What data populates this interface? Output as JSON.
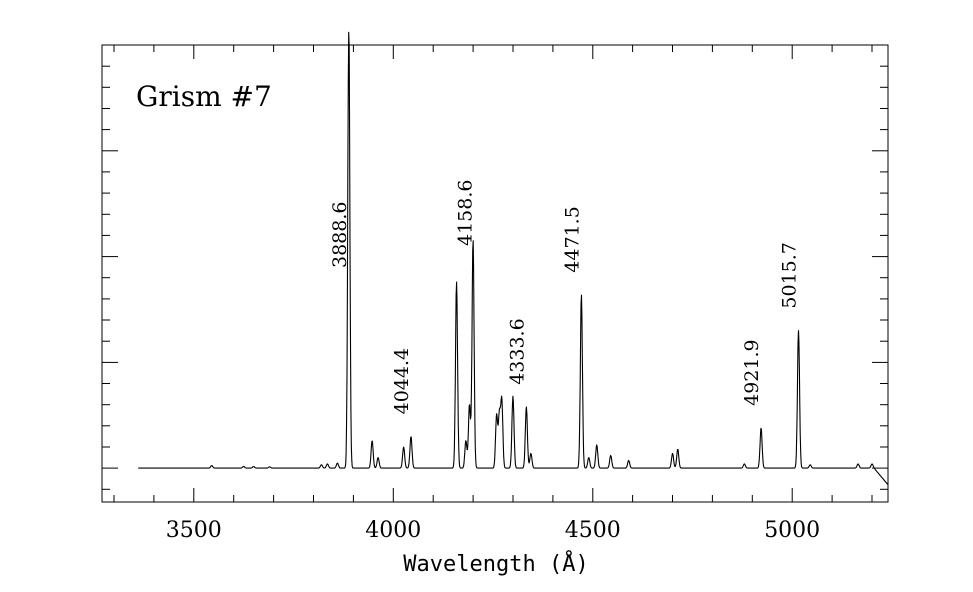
{
  "chart_data": {
    "type": "line",
    "title": "Grism #7",
    "xlabel": "Wavelength (Å)",
    "ylabel": "",
    "xlim": [
      3270,
      5240
    ],
    "ylim": [
      -0.08,
      1.0
    ],
    "x_ticks": [
      3500,
      4000,
      4500,
      5000
    ],
    "x_ticklabels": [
      "3500",
      "4000",
      "4500",
      "5000"
    ],
    "grid": false,
    "baseline": 0.0,
    "lines": [
      {
        "x": 3545,
        "y": 0.006
      },
      {
        "x": 3625,
        "y": 0.004
      },
      {
        "x": 3650,
        "y": 0.004
      },
      {
        "x": 3690,
        "y": 0.003
      },
      {
        "x": 3820,
        "y": 0.008
      },
      {
        "x": 3835,
        "y": 0.01
      },
      {
        "x": 3860,
        "y": 0.012
      },
      {
        "x": 3888.6,
        "y": 1.05
      },
      {
        "x": 3947,
        "y": 0.065
      },
      {
        "x": 3962,
        "y": 0.025
      },
      {
        "x": 4026,
        "y": 0.05
      },
      {
        "x": 4044.4,
        "y": 0.075
      },
      {
        "x": 4158.6,
        "y": 0.44
      },
      {
        "x": 4182,
        "y": 0.065
      },
      {
        "x": 4191,
        "y": 0.15
      },
      {
        "x": 4200,
        "y": 0.54
      },
      {
        "x": 4259,
        "y": 0.125
      },
      {
        "x": 4266,
        "y": 0.125
      },
      {
        "x": 4272,
        "y": 0.16
      },
      {
        "x": 4300,
        "y": 0.17
      },
      {
        "x": 4333.6,
        "y": 0.145
      },
      {
        "x": 4345,
        "y": 0.035
      },
      {
        "x": 4471.5,
        "y": 0.41
      },
      {
        "x": 4490,
        "y": 0.025
      },
      {
        "x": 4510,
        "y": 0.055
      },
      {
        "x": 4545,
        "y": 0.03
      },
      {
        "x": 4590,
        "y": 0.018
      },
      {
        "x": 4700,
        "y": 0.035
      },
      {
        "x": 4713,
        "y": 0.045
      },
      {
        "x": 4880,
        "y": 0.01
      },
      {
        "x": 4921.9,
        "y": 0.095
      },
      {
        "x": 5015.7,
        "y": 0.325
      },
      {
        "x": 5045,
        "y": 0.008
      },
      {
        "x": 5165,
        "y": 0.01
      },
      {
        "x": 5200,
        "y": 0.01
      }
    ],
    "annotations": [
      {
        "text": "3888.6",
        "x": 3888.6
      },
      {
        "text": "4044.4",
        "x": 4044.4
      },
      {
        "text": "4158.6",
        "x": 4158.6
      },
      {
        "text": "4333.6",
        "x": 4333.6
      },
      {
        "text": "4471.5",
        "x": 4471.5
      },
      {
        "text": "4921.9",
        "x": 4921.9
      },
      {
        "text": "5015.7",
        "x": 5015.7
      }
    ]
  }
}
